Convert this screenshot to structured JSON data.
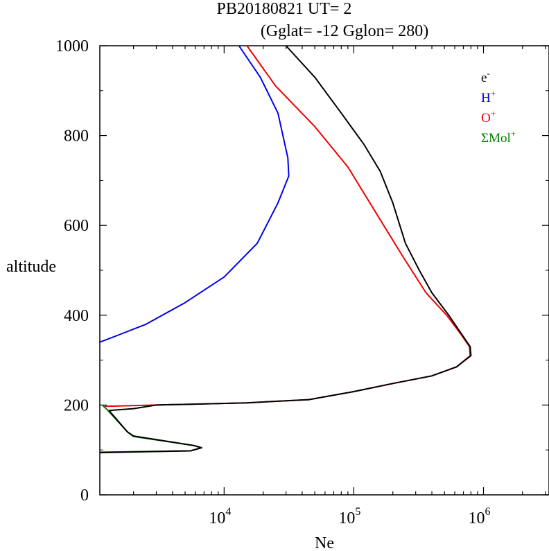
{
  "chart_data": {
    "type": "line",
    "title_line1": "PB20180821   UT=  2",
    "title_line2": "(Gglat= -12   Gglon=  280)",
    "xlabel": "Ne",
    "ylabel": "altitude",
    "x_scale": "log",
    "xlim": [
      1100,
      3200000
    ],
    "ylim": [
      0,
      1000
    ],
    "y_ticks": [
      0,
      200,
      400,
      600,
      800,
      1000
    ],
    "y_tick_labels": [
      "0",
      "200",
      "400",
      "600",
      "800",
      "1000"
    ],
    "x_ticks": [
      10000,
      100000,
      1000000
    ],
    "x_tick_labels": [
      {
        "base": "10",
        "exp": "4"
      },
      {
        "base": "10",
        "exp": "5"
      },
      {
        "base": "10",
        "exp": "6"
      }
    ],
    "legend_position": "top-right",
    "series": [
      {
        "name": "H+",
        "legend": {
          "base": "H",
          "sup": "+"
        },
        "color": "#0000ee",
        "points": [
          [
            1100,
            340
          ],
          [
            1500,
            355
          ],
          [
            2500,
            380
          ],
          [
            5000,
            428
          ],
          [
            10000,
            485
          ],
          [
            18000,
            560
          ],
          [
            26000,
            650
          ],
          [
            31500,
            710
          ],
          [
            31000,
            750
          ],
          [
            26000,
            850
          ],
          [
            19000,
            930
          ],
          [
            13000,
            1000
          ]
        ]
      },
      {
        "name": "O+",
        "legend": {
          "base": "O",
          "sup": "+"
        },
        "color": "#ee0000",
        "points": [
          [
            1200,
            197
          ],
          [
            3000,
            200
          ],
          [
            15000,
            205
          ],
          [
            45000,
            212
          ],
          [
            100000,
            230
          ],
          [
            200000,
            248
          ],
          [
            400000,
            265
          ],
          [
            620000,
            285
          ],
          [
            790000,
            310
          ],
          [
            780000,
            330
          ],
          [
            680000,
            355
          ],
          [
            520000,
            400
          ],
          [
            360000,
            450
          ],
          [
            240000,
            530
          ],
          [
            170000,
            600
          ],
          [
            90000,
            730
          ],
          [
            50000,
            820
          ],
          [
            25000,
            910
          ],
          [
            15000,
            1000
          ]
        ]
      },
      {
        "name": "ΣMol+",
        "legend": {
          "base": "ΣMol",
          "sup": "+"
        },
        "color": "#008000",
        "points": [
          [
            1150,
            200
          ],
          [
            1250,
            190
          ],
          [
            1500,
            165
          ],
          [
            1800,
            140
          ],
          [
            2000,
            130
          ],
          [
            5800,
            110
          ],
          [
            6700,
            105
          ],
          [
            5500,
            98
          ],
          [
            1100,
            95
          ]
        ]
      },
      {
        "name": "e-",
        "legend": {
          "base": "e",
          "sup": "-"
        },
        "color": "#000000",
        "points": [
          [
            1100,
            94
          ],
          [
            5500,
            98
          ],
          [
            6700,
            105
          ],
          [
            5800,
            110
          ],
          [
            2000,
            131
          ],
          [
            1800,
            140
          ],
          [
            1350,
            182
          ],
          [
            1300,
            188
          ],
          [
            2000,
            192
          ],
          [
            3000,
            200
          ],
          [
            15000,
            205
          ],
          [
            45000,
            212
          ],
          [
            100000,
            230
          ],
          [
            200000,
            248
          ],
          [
            400000,
            265
          ],
          [
            620000,
            285
          ],
          [
            800000,
            310
          ],
          [
            790000,
            330
          ],
          [
            690000,
            355
          ],
          [
            540000,
            400
          ],
          [
            400000,
            450
          ],
          [
            320000,
            500
          ],
          [
            250000,
            560
          ],
          [
            200000,
            650
          ],
          [
            160000,
            720
          ],
          [
            120000,
            780
          ],
          [
            80000,
            850
          ],
          [
            50000,
            930
          ],
          [
            30000,
            1000
          ]
        ]
      }
    ]
  }
}
